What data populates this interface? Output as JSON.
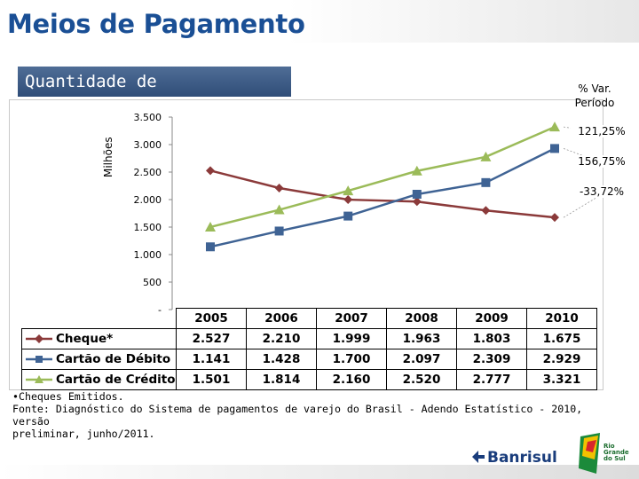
{
  "header": {
    "title": "Meios de Pagamento",
    "subtitle": "Quantidade de"
  },
  "variation": {
    "header": "% Var. Período",
    "values": [
      {
        "series": "Cartão de Crédito",
        "text": "121,25%"
      },
      {
        "series": "Cartão de Débito",
        "text": "156,75%"
      },
      {
        "series": "Cheque*",
        "text": "-33,72%"
      }
    ]
  },
  "chart_data": {
    "type": "line",
    "ylabel": "Milhões",
    "ylim": [
      0,
      3500
    ],
    "yticks": [
      {
        "value": 3500,
        "label": "3.500"
      },
      {
        "value": 3000,
        "label": "3.000"
      },
      {
        "value": 2500,
        "label": "2.500"
      },
      {
        "value": 2000,
        "label": "2.000"
      },
      {
        "value": 1500,
        "label": "1.500"
      },
      {
        "value": 1000,
        "label": "1.000"
      },
      {
        "value": 500,
        "label": "500"
      },
      {
        "value": 0,
        "label": "-"
      }
    ],
    "categories": [
      "2005",
      "2006",
      "2007",
      "2008",
      "2009",
      "2010"
    ],
    "series": [
      {
        "name": "Cheque*",
        "values": [
          2527,
          2210,
          1999,
          1963,
          1803,
          1675
        ],
        "labels": [
          "2.527",
          "2.210",
          "1.999",
          "1.963",
          "1.803",
          "1.675"
        ],
        "color": "#8b3a3a",
        "marker": "diamond"
      },
      {
        "name": "Cartão de Débito",
        "values": [
          1141,
          1428,
          1700,
          2097,
          2309,
          2929
        ],
        "labels": [
          "1.141",
          "1.428",
          "1.700",
          "2.097",
          "2.309",
          "2.929"
        ],
        "color": "#3f6394",
        "marker": "square"
      },
      {
        "name": "Cartão de Crédito",
        "values": [
          1501,
          1814,
          2160,
          2520,
          2777,
          3321
        ],
        "labels": [
          "1.501",
          "1.814",
          "2.160",
          "2.520",
          "2.777",
          "3.321"
        ],
        "color": "#9bbb59",
        "marker": "triangle"
      }
    ],
    "grid": false,
    "legend": "data-table"
  },
  "footnote": {
    "line1": "•Cheques Emitidos.",
    "line2": "Fonte: Diagnóstico do Sistema de pagamentos de varejo do Brasil - Adendo Estatístico - 2010, versão",
    "line3": "preliminar, junho/2011."
  },
  "brand": {
    "bank": "Banrisul",
    "state_logo": "Rio Grande do Sul"
  },
  "icons": {
    "brand": "banrisul-logo-icon",
    "state": "rio-grande-do-sul-flag-icon"
  }
}
